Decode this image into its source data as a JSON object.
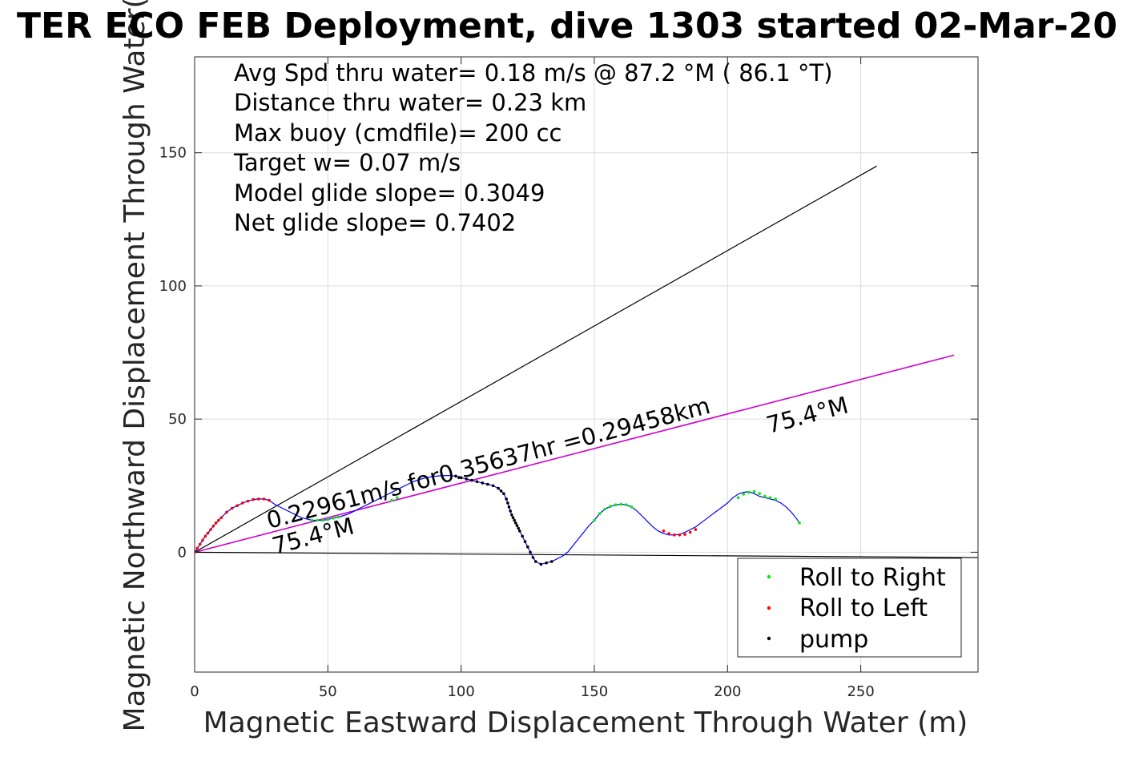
{
  "chart_data": {
    "type": "line",
    "title": "TER ECO FEB Deployment, dive 1303 started 02-Mar-20",
    "xlabel": "Magnetic Eastward Displacement Through Water (m)",
    "ylabel": "Magnetic Northward Displacement Through Water(",
    "xlim": [
      0,
      294
    ],
    "ylim": [
      -45,
      186
    ],
    "xticks": [
      0,
      50,
      100,
      150,
      200,
      250
    ],
    "yticks": [
      0,
      50,
      100,
      150
    ],
    "grid": true,
    "legend_position": "bottom-right",
    "colors": {
      "track": "#0000ff",
      "roll_right": "#00ee00",
      "roll_left": "#ff0000",
      "pump": "#000000",
      "heading_line": "#cc00cc",
      "reference_line": "#000000",
      "axes": "#262626",
      "grid": "#dcdcdc"
    },
    "info_lines": [
      "Avg Spd thru water=  0.18 m/s @  87.2 °M ( 86.1 °T)",
      "Distance thru water=  0.23 km",
      "Max buoy (cmdfile)= 200 cc",
      "Target w= 0.07 m/s",
      "Model glide slope= 0.3049",
      "Net glide slope= 0.7402"
    ],
    "annotations": {
      "speed_text": "0.22961m/s for0.35637hr =0.29458km",
      "heading_near": "75.4°M",
      "heading_far": "75.4°M"
    },
    "legend": [
      {
        "label": "Roll to Right",
        "color": "#00ee00"
      },
      {
        "label": "Roll to Left",
        "color": "#ff0000"
      },
      {
        "label": "pump",
        "color": "#000000"
      }
    ],
    "series": [
      {
        "name": "track",
        "kind": "line",
        "x": [
          0,
          2,
          4,
          6,
          8,
          10,
          12,
          14,
          16,
          18,
          20,
          22,
          24,
          26,
          28,
          30,
          32,
          34,
          36,
          38,
          40,
          42,
          44,
          46,
          48,
          50,
          52,
          54,
          56,
          58,
          60,
          62,
          64,
          66,
          68,
          70,
          72,
          74,
          76,
          78,
          80,
          82,
          84,
          86,
          88,
          90,
          92,
          94,
          96,
          98,
          100,
          102,
          104,
          106,
          108,
          110,
          112,
          114,
          116,
          117,
          118,
          119,
          120,
          121,
          122,
          123,
          124,
          125,
          126,
          127,
          128,
          130,
          132,
          134,
          136,
          138,
          140,
          142,
          144,
          146,
          148,
          150,
          152,
          154,
          156,
          158,
          160,
          162,
          164,
          166,
          168,
          170,
          172,
          174,
          176,
          178,
          180,
          182,
          184,
          186,
          188,
          190,
          192,
          194,
          196,
          198,
          200,
          202,
          204,
          206,
          208,
          210,
          212,
          214,
          216,
          218,
          220,
          222,
          224,
          226,
          227
        ],
        "y": [
          0,
          3,
          6,
          8.5,
          11,
          13,
          15,
          16.5,
          17.5,
          18.5,
          19.2,
          19.8,
          20,
          20,
          19.5,
          18,
          17,
          16,
          15,
          14,
          13,
          12.5,
          12,
          12,
          12,
          12.3,
          12.8,
          13.2,
          13.8,
          14.5,
          15.5,
          16.5,
          17.5,
          18.5,
          19.5,
          20.5,
          21.5,
          22.5,
          23.5,
          24.5,
          25.5,
          26.5,
          27.2,
          27.8,
          28.2,
          28.5,
          28.7,
          28.8,
          28.8,
          28.6,
          28,
          27.5,
          27,
          26.5,
          26,
          25.5,
          25,
          24,
          22,
          20,
          17,
          14,
          12,
          10,
          8,
          6,
          4,
          2,
          0,
          -2,
          -3.5,
          -4.5,
          -4,
          -3.5,
          -2.5,
          -1.5,
          0,
          2.5,
          5,
          7.5,
          10,
          12,
          14.5,
          16.2,
          17.2,
          17.8,
          18,
          17.8,
          17,
          15.5,
          13.5,
          11.5,
          9.5,
          8,
          7,
          6.5,
          6.5,
          6.7,
          7.5,
          8.5,
          9.5,
          11,
          12.5,
          14,
          15.5,
          17,
          18.5,
          20.5,
          21.8,
          22.5,
          22.8,
          22,
          21,
          20.5,
          20,
          19.5,
          18.5,
          17,
          15,
          12.5,
          11
        ]
      },
      {
        "name": "Roll to Right",
        "kind": "points",
        "x": [
          44,
          46,
          48,
          50,
          52,
          54,
          74,
          76,
          150,
          152,
          154,
          156,
          158,
          160,
          162,
          164,
          204,
          206,
          208,
          210,
          212,
          214,
          216,
          218,
          227
        ],
        "y": [
          12,
          12,
          12,
          12.3,
          12.8,
          13.2,
          19.5,
          20.5,
          12,
          14.5,
          16.2,
          17.2,
          17.8,
          18,
          17.8,
          17,
          20.5,
          21.8,
          22.5,
          22.8,
          22,
          21,
          20.5,
          20,
          11
        ]
      },
      {
        "name": "Roll to Left",
        "kind": "points",
        "x": [
          0,
          1,
          2,
          3,
          4,
          5,
          6,
          7,
          8,
          9,
          10,
          12,
          14,
          16,
          18,
          20,
          22,
          24,
          26,
          28,
          176,
          178,
          180,
          182,
          184,
          186,
          188
        ],
        "y": [
          0,
          1.5,
          3,
          4.5,
          6,
          7.2,
          8.5,
          9.8,
          11,
          12,
          13,
          15,
          16.5,
          17.5,
          18.5,
          19.2,
          19.8,
          20,
          20,
          19.5,
          8,
          7,
          6.5,
          6.5,
          6.7,
          7.5,
          8.5
        ]
      },
      {
        "name": "pump",
        "kind": "points",
        "x": [
          98,
          100,
          102,
          104,
          106,
          108,
          110,
          112,
          114,
          115,
          116,
          117,
          117.5,
          118,
          118.5,
          119,
          119.5,
          120,
          120.5,
          121,
          121.5,
          122,
          123,
          124,
          125,
          126,
          127,
          128,
          130,
          132,
          134
        ],
        "y": [
          28.6,
          28,
          27.5,
          27,
          26.5,
          26,
          25.5,
          25,
          24,
          23,
          22,
          20,
          18.5,
          17,
          15.5,
          14,
          13,
          12,
          11,
          10,
          9,
          8,
          6,
          4,
          2,
          0,
          -2,
          -3.5,
          -4.5,
          -4,
          -3.5
        ]
      },
      {
        "name": "75.4°M heading",
        "kind": "segment",
        "x": [
          0,
          285
        ],
        "y": [
          0,
          74
        ]
      },
      {
        "name": "reference line A",
        "kind": "segment",
        "x": [
          0,
          256
        ],
        "y": [
          0,
          145
        ]
      },
      {
        "name": "reference line B",
        "kind": "segment",
        "x": [
          0,
          294
        ],
        "y": [
          0,
          -2
        ]
      }
    ]
  }
}
